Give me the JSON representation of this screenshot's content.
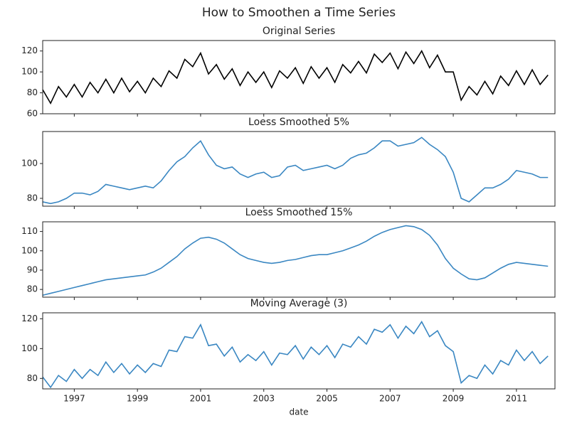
{
  "title": "How to Smoothen a Time Series",
  "chart_data": [
    {
      "type": "line",
      "title": "Original Series",
      "color": "#000000",
      "x": [
        1996,
        1996.25,
        1996.5,
        1996.75,
        1997,
        1997.25,
        1997.5,
        1997.75,
        1998,
        1998.25,
        1998.5,
        1998.75,
        1999,
        1999.25,
        1999.5,
        1999.75,
        2000,
        2000.25,
        2000.5,
        2000.75,
        2001,
        2001.25,
        2001.5,
        2001.75,
        2002,
        2002.25,
        2002.5,
        2002.75,
        2003,
        2003.25,
        2003.5,
        2003.75,
        2004,
        2004.25,
        2004.5,
        2004.75,
        2005,
        2005.25,
        2005.5,
        2005.75,
        2006,
        2006.25,
        2006.5,
        2006.75,
        2007,
        2007.25,
        2007.5,
        2007.75,
        2008,
        2008.25,
        2008.5,
        2008.75,
        2009,
        2009.25,
        2009.5,
        2009.75,
        2010,
        2010.25,
        2010.5,
        2010.75,
        2011,
        2011.25,
        2011.5,
        2011.75,
        2012
      ],
      "values": [
        83,
        70,
        86,
        76,
        88,
        76,
        90,
        80,
        93,
        80,
        94,
        81,
        91,
        80,
        94,
        86,
        101,
        94,
        112,
        105,
        118,
        98,
        107,
        93,
        103,
        87,
        100,
        90,
        100,
        85,
        101,
        94,
        104,
        89,
        105,
        94,
        104,
        90,
        107,
        99,
        110,
        99,
        117,
        109,
        118,
        103,
        119,
        108,
        120,
        104,
        116,
        100,
        100,
        73,
        86,
        78,
        91,
        79,
        96,
        87,
        101,
        88,
        102,
        88,
        97
      ],
      "xlim": [
        1996,
        2012.22
      ],
      "ylim": [
        60,
        130
      ],
      "yticks": [
        60,
        80,
        100,
        120
      ]
    },
    {
      "type": "line",
      "title": "Loess Smoothed 5%",
      "color": "#3a87c2",
      "x": [
        1996,
        1996.25,
        1996.5,
        1996.75,
        1997,
        1997.25,
        1997.5,
        1997.75,
        1998,
        1998.25,
        1998.5,
        1998.75,
        1999,
        1999.25,
        1999.5,
        1999.75,
        2000,
        2000.25,
        2000.5,
        2000.75,
        2001,
        2001.25,
        2001.5,
        2001.75,
        2002,
        2002.25,
        2002.5,
        2002.75,
        2003,
        2003.25,
        2003.5,
        2003.75,
        2004,
        2004.25,
        2004.5,
        2004.75,
        2005,
        2005.25,
        2005.5,
        2005.75,
        2006,
        2006.25,
        2006.5,
        2006.75,
        2007,
        2007.25,
        2007.5,
        2007.75,
        2008,
        2008.25,
        2008.5,
        2008.75,
        2009,
        2009.25,
        2009.5,
        2009.75,
        2010,
        2010.25,
        2010.5,
        2010.75,
        2011,
        2011.25,
        2011.5,
        2011.75,
        2012
      ],
      "values": [
        78,
        77,
        78,
        80,
        83,
        83,
        82,
        84,
        88,
        87,
        86,
        85,
        86,
        87,
        86,
        90,
        96,
        101,
        104,
        109,
        113,
        105,
        99,
        97,
        98,
        94,
        92,
        94,
        95,
        92,
        93,
        98,
        99,
        96,
        97,
        98,
        99,
        97,
        99,
        103,
        105,
        106,
        109,
        113,
        113,
        110,
        111,
        112,
        115,
        111,
        108,
        104,
        95,
        80,
        78,
        82,
        86,
        86,
        88,
        91,
        96,
        95,
        94,
        92,
        92
      ],
      "xlim": [
        1996,
        2012.22
      ],
      "ylim": [
        75.5,
        118.4
      ],
      "yticks": [
        80,
        100
      ]
    },
    {
      "type": "line",
      "title": "Loess Smoothed 15%",
      "color": "#3a87c2",
      "x": [
        1996,
        1996.25,
        1996.5,
        1996.75,
        1997,
        1997.25,
        1997.5,
        1997.75,
        1998,
        1998.25,
        1998.5,
        1998.75,
        1999,
        1999.25,
        1999.5,
        1999.75,
        2000,
        2000.25,
        2000.5,
        2000.75,
        2001,
        2001.25,
        2001.5,
        2001.75,
        2002,
        2002.25,
        2002.5,
        2002.75,
        2003,
        2003.25,
        2003.5,
        2003.75,
        2004,
        2004.25,
        2004.5,
        2004.75,
        2005,
        2005.25,
        2005.5,
        2005.75,
        2006,
        2006.25,
        2006.5,
        2006.75,
        2007,
        2007.25,
        2007.5,
        2007.75,
        2008,
        2008.25,
        2008.5,
        2008.75,
        2009,
        2009.25,
        2009.5,
        2009.75,
        2010,
        2010.25,
        2010.5,
        2010.75,
        2011,
        2011.25,
        2011.5,
        2011.75,
        2012
      ],
      "values": [
        77,
        78,
        79,
        80,
        81,
        82,
        83,
        84,
        85,
        85.5,
        86,
        86.5,
        87,
        87.5,
        89,
        91,
        94,
        97,
        101,
        104,
        106.5,
        107,
        106,
        104,
        101,
        98,
        96,
        95,
        94,
        93.5,
        94,
        95,
        95.5,
        96.5,
        97.5,
        98,
        98,
        99,
        100,
        101.5,
        103,
        105,
        107.5,
        109.5,
        111,
        112,
        113,
        112.5,
        111,
        108,
        103,
        96,
        91,
        88,
        85.5,
        85,
        86,
        88.5,
        91,
        93,
        94,
        93.5,
        93,
        92.5,
        92
      ],
      "xlim": [
        1996,
        2012.22
      ],
      "ylim": [
        76,
        115
      ],
      "yticks": [
        80,
        90,
        100,
        110
      ]
    },
    {
      "type": "line",
      "title": "Moving Average (3)",
      "color": "#3a87c2",
      "xlabel": "date",
      "x": [
        1996,
        1996.25,
        1996.5,
        1996.75,
        1997,
        1997.25,
        1997.5,
        1997.75,
        1998,
        1998.25,
        1998.5,
        1998.75,
        1999,
        1999.25,
        1999.5,
        1999.75,
        2000,
        2000.25,
        2000.5,
        2000.75,
        2001,
        2001.25,
        2001.5,
        2001.75,
        2002,
        2002.25,
        2002.5,
        2002.75,
        2003,
        2003.25,
        2003.5,
        2003.75,
        2004,
        2004.25,
        2004.5,
        2004.75,
        2005,
        2005.25,
        2005.5,
        2005.75,
        2006,
        2006.25,
        2006.5,
        2006.75,
        2007,
        2007.25,
        2007.5,
        2007.75,
        2008,
        2008.25,
        2008.5,
        2008.75,
        2009,
        2009.25,
        2009.5,
        2009.75,
        2010,
        2010.25,
        2010.5,
        2010.75,
        2011,
        2011.25,
        2011.5,
        2011.75,
        2012
      ],
      "values": [
        81,
        74,
        82,
        78,
        86,
        80,
        86,
        82,
        91,
        84,
        90,
        83,
        89,
        84,
        90,
        88,
        99,
        98,
        108,
        107,
        116,
        102,
        103,
        95,
        101,
        91,
        96,
        92,
        98,
        89,
        97,
        96,
        102,
        93,
        101,
        96,
        102,
        94,
        103,
        101,
        108,
        103,
        113,
        111,
        116,
        107,
        115,
        110,
        118,
        108,
        112,
        102,
        98,
        77,
        82,
        80,
        89,
        83,
        92,
        89,
        99,
        92,
        98,
        90,
        95
      ],
      "xlim": [
        1996,
        2012.22
      ],
      "ylim": [
        73,
        124
      ],
      "yticks": [
        80,
        100,
        120
      ],
      "xticks": [
        1997,
        1999,
        2001,
        2003,
        2005,
        2007,
        2009,
        2011
      ]
    }
  ]
}
